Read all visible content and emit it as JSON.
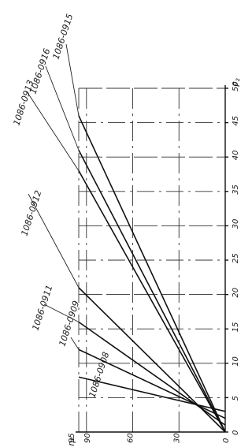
{
  "chart_data": {
    "type": "line",
    "orientation": "rotated 90 degrees counter-clockwise",
    "xlabel": "F₂",
    "ylabel": "η₂",
    "xlim": [
      0,
      50
    ],
    "ylim": [
      0,
      95
    ],
    "x_ticks": [
      "0",
      "5",
      "10",
      "15",
      "20",
      "25",
      "30",
      "35",
      "40",
      "45",
      "50"
    ],
    "y_ticks": [
      "0",
      "30",
      "60",
      "90",
      "95"
    ],
    "grid": true,
    "series": [
      {
        "name": "1086-0908",
        "points": [
          [
            3,
            0
          ],
          [
            8,
            95
          ]
        ]
      },
      {
        "name": "1086-0909",
        "points": [
          [
            2,
            0
          ],
          [
            12,
            95
          ]
        ]
      },
      {
        "name": "1086-0911",
        "points": [
          [
            1,
            0
          ],
          [
            16,
            95
          ]
        ]
      },
      {
        "name": "1086-0912",
        "points": [
          [
            0,
            0
          ],
          [
            21,
            95
          ]
        ]
      },
      {
        "name": "1086-0913",
        "points": [
          [
            0,
            0
          ],
          [
            38,
            95
          ]
        ]
      },
      {
        "name": "1086-0916",
        "points": [
          [
            0,
            0
          ],
          [
            41,
            95
          ]
        ]
      },
      {
        "name": "1086-0915",
        "points": [
          [
            0,
            0
          ],
          [
            46,
            95
          ]
        ]
      }
    ]
  }
}
